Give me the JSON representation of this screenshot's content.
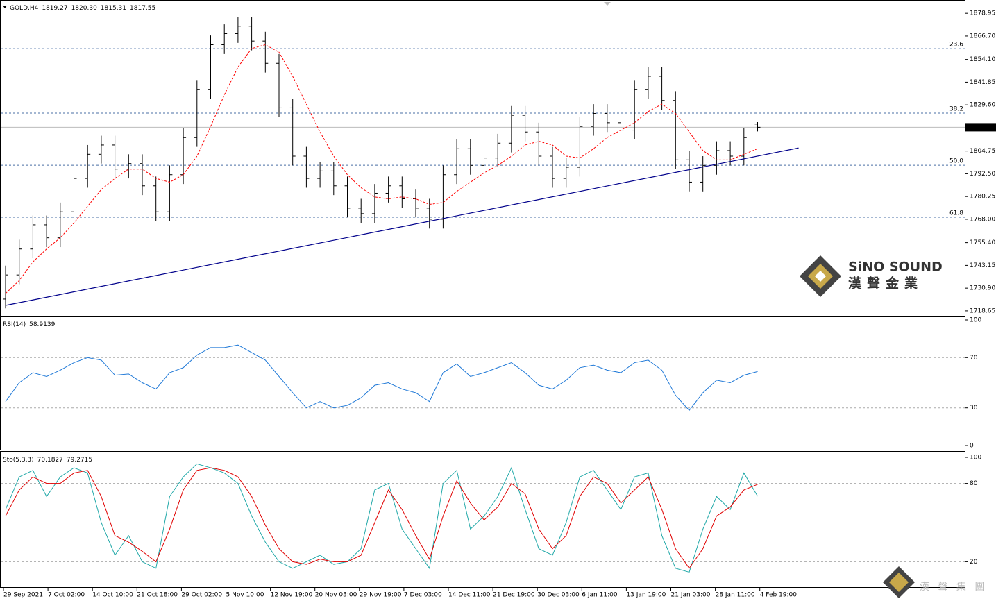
{
  "chart_data": [
    {
      "type": "ohlc",
      "title": "GOLD,H4",
      "last_quote": [
        1819.27,
        {
          "value": 1820.3,
          "label": "1820.30"
        },
        1815.31,
        1817.55
      ],
      "open": [
        1725,
        1738,
        1752,
        1765,
        1758,
        1772,
        1790,
        1803,
        1808,
        1795,
        1798,
        1786,
        1772,
        1792,
        1812,
        1838,
        1862,
        1868,
        1872,
        1864,
        1852,
        1828,
        1802,
        1790,
        1794,
        1786,
        1774,
        1771,
        1782,
        1786,
        1779,
        1774,
        1768,
        1792,
        1806,
        1797,
        1801,
        1809,
        1824,
        1815,
        1802,
        1790,
        1796,
        1818,
        1825,
        1820,
        1816,
        1838,
        1845,
        1832,
        1800,
        1788,
        1797,
        1805,
        1802,
        1819.27
      ],
      "high": [
        1743,
        1757,
        1770,
        1770,
        1777,
        1795,
        1808,
        1813,
        1813,
        1803,
        1803,
        1791,
        1797,
        1817,
        1843,
        1867,
        1873,
        1877,
        1877,
        1869,
        1857,
        1833,
        1807,
        1799,
        1799,
        1791,
        1779,
        1787,
        1791,
        1791,
        1784,
        1779,
        1797,
        1811,
        1811,
        1806,
        1814,
        1829,
        1829,
        1820,
        1807,
        1801,
        1823,
        1830,
        1830,
        1825,
        1843,
        1850,
        1850,
        1837,
        1805,
        1802,
        1810,
        1810,
        1817,
        1820.3
      ],
      "low": [
        1720,
        1733,
        1747,
        1753,
        1753,
        1767,
        1785,
        1798,
        1790,
        1790,
        1781,
        1767,
        1767,
        1787,
        1807,
        1833,
        1857,
        1863,
        1859,
        1847,
        1823,
        1797,
        1785,
        1785,
        1781,
        1769,
        1766,
        1766,
        1777,
        1774,
        1769,
        1763,
        1763,
        1787,
        1792,
        1792,
        1796,
        1804,
        1810,
        1797,
        1785,
        1785,
        1791,
        1813,
        1815,
        1811,
        1811,
        1833,
        1827,
        1795,
        1783,
        1783,
        1792,
        1797,
        1797,
        1815.31
      ],
      "close": [
        1738,
        1752,
        1765,
        1758,
        1772,
        1790,
        1803,
        1808,
        1795,
        1798,
        1786,
        1772,
        1792,
        1812,
        1838,
        1862,
        1868,
        1872,
        1864,
        1852,
        1828,
        1802,
        1790,
        1794,
        1786,
        1774,
        1771,
        1782,
        1786,
        1779,
        1774,
        1768,
        1792,
        1806,
        1797,
        1801,
        1809,
        1824,
        1815,
        1802,
        1790,
        1796,
        1818,
        1825,
        1820,
        1816,
        1838,
        1845,
        1832,
        1800,
        1788,
        1797,
        1805,
        1802,
        1812,
        1817.55
      ],
      "ma": {
        "color": "#ff0000",
        "values": [
          1728,
          1735,
          1745,
          1752,
          1758,
          1766,
          1775,
          1784,
          1790,
          1795,
          1795,
          1790,
          1788,
          1792,
          1802,
          1818,
          1835,
          1850,
          1860,
          1862,
          1858,
          1845,
          1830,
          1815,
          1802,
          1792,
          1785,
          1780,
          1779,
          1780,
          1779,
          1776,
          1777,
          1783,
          1788,
          1793,
          1797,
          1802,
          1808,
          1810,
          1808,
          1802,
          1801,
          1806,
          1812,
          1816,
          1820,
          1826,
          1830,
          1825,
          1815,
          1805,
          1800,
          1800,
          1803,
          1806
        ]
      },
      "bar_color": "#000000",
      "ylim": [
        1716,
        1885
      ],
      "yticks": [
        {
          "value": 1878.95,
          "label": "1878.95"
        },
        {
          "value": 1866.7,
          "label": "1866.70"
        },
        {
          "value": 1854.1,
          "label": "1854.10"
        },
        {
          "value": 1841.85,
          "label": "1841.85"
        },
        {
          "value": 1829.6,
          "label": "1829.60"
        },
        {
          "value": 1804.75,
          "label": "1804.75"
        },
        {
          "value": 1792.5,
          "label": "1792.50"
        },
        {
          "value": 1780.25,
          "label": "1780.25"
        },
        {
          "value": 1768,
          "label": "1768.00"
        },
        {
          "value": 1755.4,
          "label": "1755.40"
        },
        {
          "value": 1743.15,
          "label": "1743.15"
        },
        {
          "value": 1730.9,
          "label": "1730.90"
        },
        {
          "value": 1718.65,
          "label": "1718.65"
        }
      ],
      "fib_levels": [
        {
          "value": 1859.9,
          "label": "23.6"
        },
        {
          "value": 1825.2,
          "label": "38.2"
        },
        {
          "value": 1797.1,
          "label": "50.0"
        },
        {
          "value": 1769.1,
          "label": "61.8"
        }
      ],
      "fib_color": "#4a6fa5",
      "current_price": 1817.55,
      "trendline": {
        "color": "#00008b",
        "x": [
          0,
          58
        ],
        "y": [
          1721.6,
          1806.4
        ]
      },
      "x_labels": [
        "29 Sep 2021",
        "7 Oct 02:00",
        "14 Oct 10:00",
        "21 Oct 18:00",
        "29 Oct 02:00",
        "5 Nov 10:00",
        "12 Nov 19:00",
        "20 Nov 03:00",
        "29 Nov 19:00",
        "7 Dec 03:00",
        "14 Dec 11:00",
        "21 Dec 19:00",
        "30 Dec 03:00",
        "6 Jan 11:00",
        "13 Jan 19:00",
        "21 Jan 03:00",
        "28 Jan 11:00",
        "4 Feb 19:00"
      ]
    },
    {
      "type": "line",
      "title": "RSI(14)",
      "series": [
        {
          "color": "#1e78d7",
          "values": [
            35,
            50,
            58,
            55,
            60,
            66,
            70,
            68,
            56,
            57,
            50,
            45,
            58,
            62,
            72,
            78,
            78,
            80,
            74,
            68,
            55,
            42,
            30,
            35,
            30,
            32,
            38,
            48,
            50,
            45,
            42,
            35,
            58,
            65,
            55,
            58,
            62,
            66,
            58,
            48,
            45,
            52,
            62,
            64,
            60,
            58,
            66,
            68,
            60,
            40,
            28,
            42,
            52,
            50,
            56,
            58.9139
          ]
        }
      ],
      "ylim": [
        0,
        100
      ],
      "yticks": [
        0,
        30,
        70,
        100
      ],
      "levels": [
        30,
        70
      ]
    },
    {
      "type": "line",
      "title": "Sto(5,3,3)",
      "series": [
        {
          "color": "#20a8a8",
          "values": [
            60,
            85,
            90,
            70,
            85,
            92,
            88,
            50,
            25,
            40,
            20,
            15,
            70,
            85,
            95,
            92,
            88,
            80,
            55,
            35,
            20,
            15,
            20,
            25,
            18,
            20,
            30,
            75,
            80,
            45,
            30,
            15,
            80,
            90,
            45,
            55,
            70,
            92,
            60,
            30,
            25,
            50,
            85,
            90,
            75,
            60,
            85,
            88,
            40,
            15,
            12,
            45,
            70,
            60,
            88,
            70.1827
          ]
        },
        {
          "color": "#e00000",
          "values": [
            55,
            75,
            85,
            80,
            80,
            88,
            90,
            70,
            40,
            35,
            28,
            20,
            45,
            75,
            90,
            92,
            90,
            85,
            70,
            48,
            30,
            20,
            18,
            22,
            20,
            20,
            25,
            50,
            75,
            60,
            40,
            22,
            55,
            82,
            65,
            52,
            62,
            80,
            72,
            45,
            30,
            40,
            70,
            85,
            80,
            65,
            75,
            85,
            60,
            30,
            15,
            30,
            55,
            62,
            75,
            79.2715
          ]
        }
      ],
      "ylim": [
        0,
        100
      ],
      "yticks": [
        20,
        80,
        100
      ],
      "levels": [
        20,
        80
      ]
    }
  ],
  "logo": {
    "brand": "SiNO SOUND",
    "chinese": "漢聲金業",
    "footer": "漢 聲 集 團"
  }
}
